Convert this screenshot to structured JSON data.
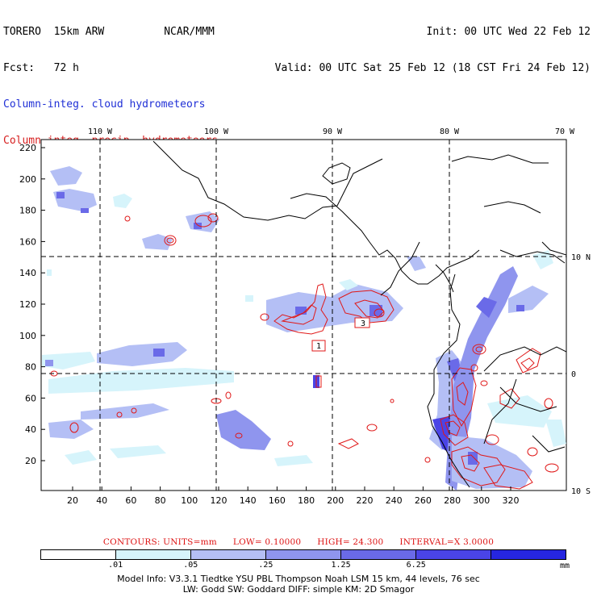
{
  "header": {
    "left_line1": "TORERO  15km ARW",
    "center_line1": "NCAR/MMM",
    "left_line2": "Fcst:   72 h",
    "right_line1": "Init: 00 UTC Wed 22 Feb 12",
    "right_line2": "Valid: 00 UTC Sat 25 Feb 12 (18 CST Fri 24 Feb 12)",
    "legend_cloud": "Column-integ. cloud hydrometeors",
    "legend_precip": "Column-integ. precip. hydrometeors",
    "cloud_color": "#3a44e0",
    "precip_color": "#e01818"
  },
  "map": {
    "lon_labels": [
      "110 W",
      "100 W",
      "90 W",
      "80 W",
      "70 W"
    ],
    "lat_labels": [
      "10 N",
      "0",
      "10 S"
    ],
    "x_ticks": [
      "20",
      "40",
      "60",
      "80",
      "100",
      "120",
      "140",
      "160",
      "180",
      "200",
      "220",
      "240",
      "260",
      "280",
      "300",
      "320"
    ],
    "y_ticks": [
      "20",
      "40",
      "60",
      "80",
      "100",
      "120",
      "140",
      "160",
      "180",
      "200",
      "220"
    ],
    "box_labels": [
      "1",
      "3"
    ]
  },
  "contour_info": {
    "contours": "CONTOURS:  UNITS=mm",
    "low": "LOW= 0.10000",
    "high": "HIGH=  24.300",
    "interval": "INTERVAL=X  3.0000"
  },
  "colorbar": {
    "colors": [
      "#ffffff",
      "#d6f4fb",
      "#b4bff5",
      "#8f95ee",
      "#6a6ae8",
      "#4a44e6",
      "#2626e0"
    ],
    "labels": [
      ".01",
      ".05",
      ".25",
      "1.25",
      "6.25"
    ],
    "unit": "mm"
  },
  "footer": {
    "line1": "Model Info: V3.3.1   Tiedtke YSU PBL  Thompson    Noah LSM  15 km,   44 levels,    76 sec",
    "line2": "LW: Godd SW: Goddard DIFF: simple KM: 2D Smagor"
  }
}
